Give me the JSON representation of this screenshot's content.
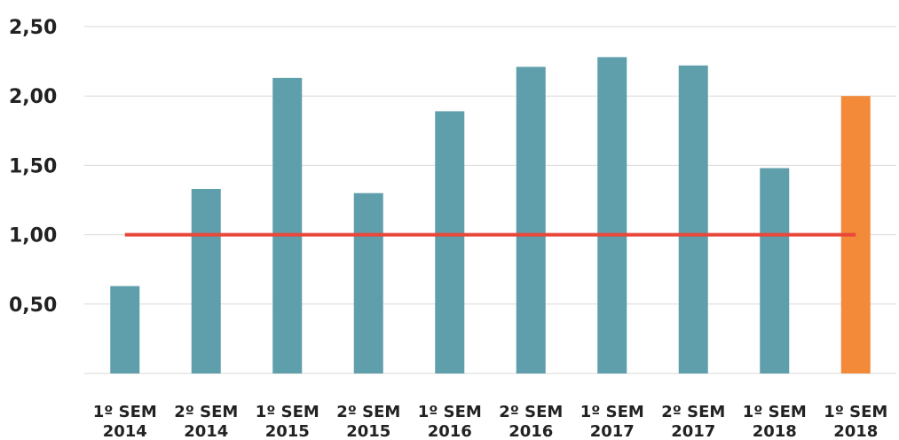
{
  "chart_data": {
    "type": "bar",
    "categories": [
      [
        "1º SEM",
        "2014"
      ],
      [
        "2º SEM",
        "2014"
      ],
      [
        "1º SEM",
        "2015"
      ],
      [
        "2º SEM",
        "2015"
      ],
      [
        "1º SEM",
        "2016"
      ],
      [
        "2º SEM",
        "2016"
      ],
      [
        "1º SEM",
        "2017"
      ],
      [
        "2º SEM",
        "2017"
      ],
      [
        "1º SEM",
        "2018"
      ],
      [
        "1º SEM",
        "2018"
      ]
    ],
    "values": [
      0.63,
      1.33,
      2.13,
      1.3,
      1.89,
      2.21,
      2.28,
      2.22,
      1.48,
      2.0
    ],
    "bar_colors": [
      "#5f9eab",
      "#5f9eab",
      "#5f9eab",
      "#5f9eab",
      "#5f9eab",
      "#5f9eab",
      "#5f9eab",
      "#5f9eab",
      "#5f9eab",
      "#f28a3a"
    ],
    "reference_line": {
      "value": 1.0,
      "color": "#e8473a"
    },
    "yticks": [
      "0,50",
      "1,00",
      "1,50",
      "2,00",
      "2,50"
    ],
    "ytick_values": [
      0.5,
      1.0,
      1.5,
      2.0,
      2.5
    ],
    "ylim": [
      0,
      2.5
    ],
    "grid": true,
    "title": "",
    "xlabel": "",
    "ylabel": ""
  }
}
